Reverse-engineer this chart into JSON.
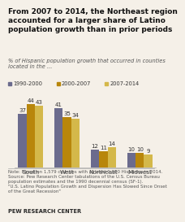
{
  "title": "From 2007 to 2014, the Northeast region\naccounted for a larger share of Latino\npopulation growth than in prior periods",
  "subtitle": "% of Hispanic population growth that occurred in counties\nlocated in the ...",
  "categories": [
    "South",
    "West",
    "Northeast",
    "Midwest"
  ],
  "series": [
    {
      "label": "1990-2000",
      "values": [
        37,
        41,
        12,
        10
      ],
      "color": "#6b6b8d"
    },
    {
      "label": "2000-2007",
      "values": [
        44,
        35,
        11,
        10
      ],
      "color": "#b8860b"
    },
    {
      "label": "2007-2014",
      "values": [
        43,
        34,
        14,
        9
      ],
      "color": "#d4b84a"
    }
  ],
  "note": "Note: Based on 1,579 counties with at least 1,000 Hispanics in 2014.\nSource: Pew Research Center tabulations of the U.S. Census Bureau\npopulation estimates and the 1990 decennial census (SF-1).\n\"U.S. Latino Population Growth and Dispersion Has Slowed Since Onset\nof the Great Recession\"",
  "footer": "PEW RESEARCH CENTER",
  "bg_color": "#f5f0e8",
  "bar_width": 0.23,
  "ylim": [
    0,
    52
  ],
  "title_fontsize": 6.5,
  "subtitle_fontsize": 4.8,
  "tick_fontsize": 5.2,
  "note_fontsize": 4.0,
  "footer_fontsize": 4.8,
  "legend_fontsize": 4.8,
  "value_fontsize": 5.0
}
